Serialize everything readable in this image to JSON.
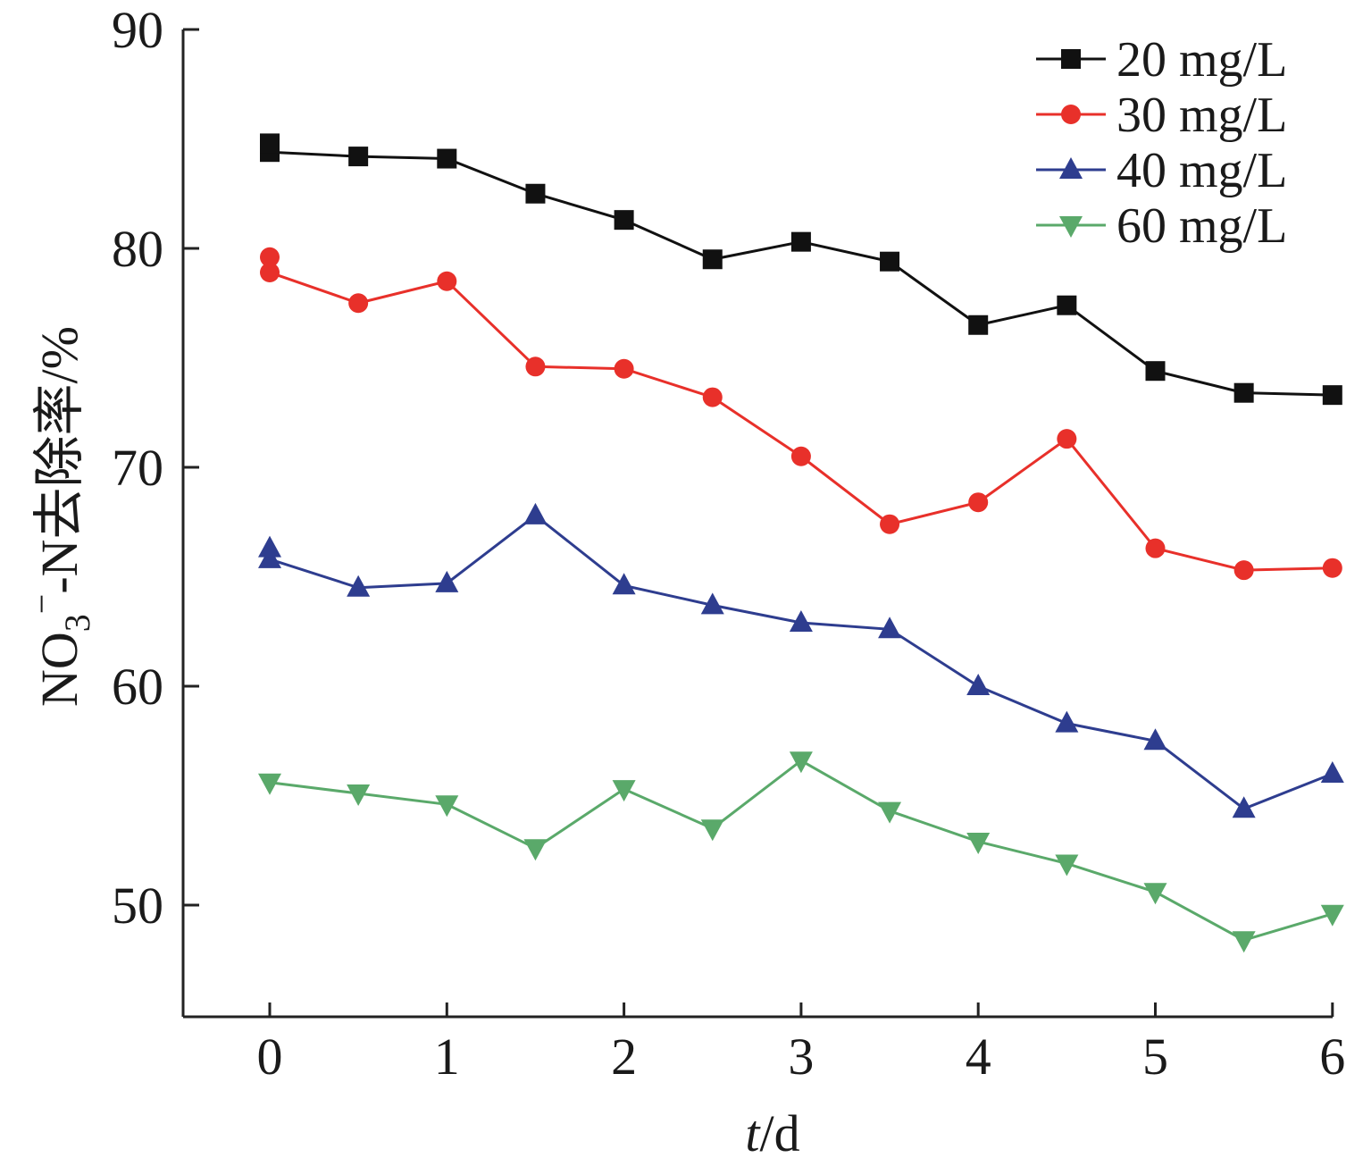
{
  "chart_data": {
    "type": "line",
    "xlabel": "t/d",
    "ylabel": "NO3−-N去除率/%",
    "xlim": [
      -0.5,
      6
    ],
    "ylim": [
      45,
      90
    ],
    "xticks": [
      0,
      1,
      2,
      3,
      4,
      5,
      6
    ],
    "yticks": [
      50,
      60,
      70,
      80,
      90
    ],
    "grid": false,
    "legend_position": "top-right",
    "x": [
      0,
      0.5,
      1,
      1.5,
      2,
      2.5,
      3,
      3.5,
      4,
      4.5,
      5,
      5.5,
      6
    ],
    "series": [
      {
        "name": "20 mg/L",
        "color": "#111111",
        "marker": "square",
        "values": [
          84.4,
          84.2,
          84.1,
          82.5,
          81.3,
          79.5,
          80.3,
          79.4,
          76.5,
          77.4,
          74.4,
          73.4,
          73.3
        ],
        "extra_points": [
          [
            0,
            84.8
          ]
        ]
      },
      {
        "name": "30 mg/L",
        "color": "#e8302a",
        "marker": "circle",
        "values": [
          78.9,
          77.5,
          78.5,
          74.6,
          74.5,
          73.2,
          70.5,
          67.4,
          68.4,
          71.3,
          66.3,
          65.3,
          65.4
        ],
        "extra_points": [
          [
            0,
            79.6
          ]
        ]
      },
      {
        "name": "40 mg/L",
        "color": "#2e3d8f",
        "marker": "triangle-up",
        "values": [
          65.8,
          64.5,
          64.7,
          67.8,
          64.6,
          63.7,
          62.9,
          62.6,
          60.0,
          58.3,
          57.5,
          54.4,
          56.0
        ],
        "extra_points": [
          [
            0,
            66.3
          ]
        ]
      },
      {
        "name": "60 mg/L",
        "color": "#5aa96a",
        "marker": "triangle-down",
        "values": [
          55.6,
          55.1,
          54.6,
          52.6,
          55.3,
          53.5,
          56.6,
          54.3,
          52.9,
          51.9,
          50.6,
          48.4,
          49.6
        ],
        "extra_points": []
      }
    ]
  }
}
